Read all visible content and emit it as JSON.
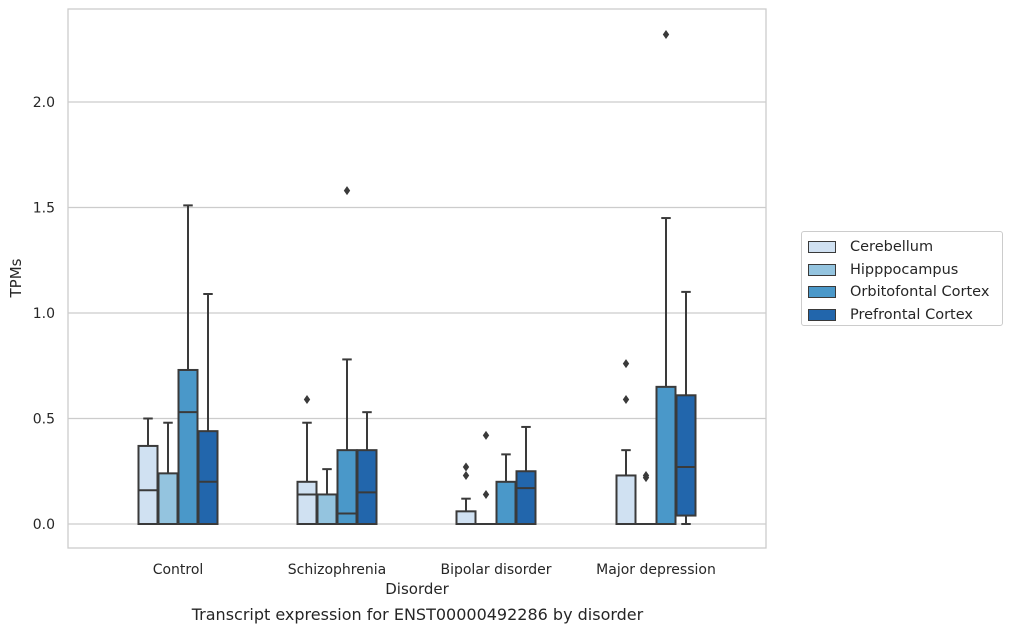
{
  "chart_data": {
    "type": "box",
    "title": "",
    "caption": "Transcript expression for ENST00000492286 by disorder",
    "xlabel": "Disorder",
    "ylabel": "TPMs",
    "ylim": [
      -0.11,
      2.44
    ],
    "yticks": [
      "0.0",
      "0.5",
      "1.0",
      "1.5",
      "2.0"
    ],
    "ytick_values": [
      0,
      0.5,
      1.0,
      1.5,
      2.0
    ],
    "grid": "horizontal",
    "legend_placement": "outside-right",
    "categories": [
      "Control",
      "Schizophrenia",
      "Bipolar disorder",
      "Major depression"
    ],
    "series": [
      {
        "name": "Cerebellum",
        "color": "#d0e1f2",
        "boxes": [
          {
            "whisker_low": 0,
            "q1": 0,
            "median": 0.16,
            "q3": 0.37,
            "whisker_high": 0.5,
            "outliers": []
          },
          {
            "whisker_low": 0,
            "q1": 0,
            "median": 0.14,
            "q3": 0.2,
            "whisker_high": 0.48,
            "outliers": [
              0.59
            ]
          },
          {
            "whisker_low": 0,
            "q1": 0,
            "median": 0,
            "q3": 0.06,
            "whisker_high": 0.12,
            "outliers": [
              0.23,
              0.27
            ]
          },
          {
            "whisker_low": 0,
            "q1": 0,
            "median": 0,
            "q3": 0.23,
            "whisker_high": 0.35,
            "outliers": [
              0.59,
              0.76
            ]
          }
        ]
      },
      {
        "name": "Hipppocampus",
        "color": "#94c4df",
        "boxes": [
          {
            "whisker_low": 0,
            "q1": 0,
            "median": 0,
            "q3": 0.24,
            "whisker_high": 0.48,
            "outliers": []
          },
          {
            "whisker_low": 0,
            "q1": 0,
            "median": 0,
            "q3": 0.14,
            "whisker_high": 0.26,
            "outliers": []
          },
          {
            "whisker_low": 0,
            "q1": 0,
            "median": 0,
            "q3": 0,
            "whisker_high": 0,
            "outliers": [
              0.14,
              0.42
            ]
          },
          {
            "whisker_low": 0,
            "q1": 0,
            "median": 0,
            "q3": 0,
            "whisker_high": 0,
            "outliers": [
              0.22,
              0.23
            ]
          }
        ]
      },
      {
        "name": "Orbitofontal Cortex",
        "color": "#4a98c9",
        "boxes": [
          {
            "whisker_low": 0,
            "q1": 0,
            "median": 0.53,
            "q3": 0.73,
            "whisker_high": 1.51,
            "outliers": []
          },
          {
            "whisker_low": 0,
            "q1": 0,
            "median": 0.05,
            "q3": 0.35,
            "whisker_high": 0.78,
            "outliers": [
              1.58
            ]
          },
          {
            "whisker_low": 0,
            "q1": 0,
            "median": 0,
            "q3": 0.2,
            "whisker_high": 0.33,
            "outliers": []
          },
          {
            "whisker_low": 0,
            "q1": 0,
            "median": 0,
            "q3": 0.65,
            "whisker_high": 1.45,
            "outliers": [
              2.32
            ]
          }
        ]
      },
      {
        "name": "Prefrontal Cortex",
        "color": "#2266ac",
        "boxes": [
          {
            "whisker_low": 0,
            "q1": 0,
            "median": 0.2,
            "q3": 0.44,
            "whisker_high": 1.09,
            "outliers": []
          },
          {
            "whisker_low": 0,
            "q1": 0,
            "median": 0.15,
            "q3": 0.35,
            "whisker_high": 0.53,
            "outliers": []
          },
          {
            "whisker_low": 0,
            "q1": 0,
            "median": 0.17,
            "q3": 0.25,
            "whisker_high": 0.46,
            "outliers": []
          },
          {
            "whisker_low": 0,
            "q1": 0.04,
            "median": 0.27,
            "q3": 0.61,
            "whisker_high": 1.1,
            "outliers": []
          }
        ]
      }
    ]
  }
}
